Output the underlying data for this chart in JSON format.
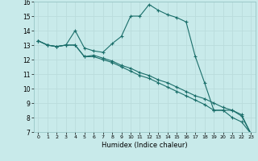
{
  "xlabel": "Humidex (Indice chaleur)",
  "background_color": "#c8eaea",
  "grid_color": "#b8dada",
  "line_color": "#1a6e6a",
  "ylim": [
    7,
    16
  ],
  "xlim": [
    -0.5,
    23.5
  ],
  "yticks": [
    7,
    8,
    9,
    10,
    11,
    12,
    13,
    14,
    15,
    16
  ],
  "xticks": [
    0,
    1,
    2,
    3,
    4,
    5,
    6,
    7,
    8,
    9,
    10,
    11,
    12,
    13,
    14,
    15,
    16,
    17,
    18,
    19,
    20,
    21,
    22,
    23
  ],
  "line1_x": [
    0,
    1,
    2,
    3,
    4,
    5,
    6,
    7,
    8,
    9,
    10,
    11,
    12,
    13,
    14,
    15,
    16,
    17,
    18,
    19,
    20,
    21,
    22,
    23
  ],
  "line1_y": [
    13.3,
    13.0,
    12.9,
    13.0,
    14.0,
    12.8,
    12.6,
    12.5,
    13.1,
    13.6,
    15.0,
    15.0,
    15.8,
    15.4,
    15.1,
    14.9,
    14.6,
    12.2,
    10.4,
    8.5,
    8.5,
    8.0,
    7.7,
    6.9
  ],
  "line2_x": [
    0,
    1,
    2,
    3,
    4,
    5,
    6,
    7,
    8,
    9,
    10,
    11,
    12,
    13,
    14,
    15,
    16,
    17,
    18,
    19,
    20,
    21,
    22,
    23
  ],
  "line2_y": [
    13.3,
    13.0,
    12.9,
    13.0,
    13.0,
    12.2,
    12.3,
    12.1,
    11.9,
    11.6,
    11.4,
    11.1,
    10.9,
    10.6,
    10.4,
    10.1,
    9.8,
    9.5,
    9.3,
    9.0,
    8.7,
    8.5,
    8.2,
    6.9
  ],
  "line3_x": [
    0,
    1,
    2,
    3,
    4,
    5,
    6,
    7,
    8,
    9,
    10,
    11,
    12,
    13,
    14,
    15,
    16,
    17,
    18,
    19,
    20,
    21,
    22,
    23
  ],
  "line3_y": [
    13.3,
    13.0,
    12.9,
    13.0,
    13.0,
    12.2,
    12.2,
    12.0,
    11.8,
    11.5,
    11.2,
    10.9,
    10.7,
    10.4,
    10.1,
    9.8,
    9.5,
    9.2,
    8.9,
    8.5,
    8.5,
    8.5,
    8.1,
    6.9
  ]
}
